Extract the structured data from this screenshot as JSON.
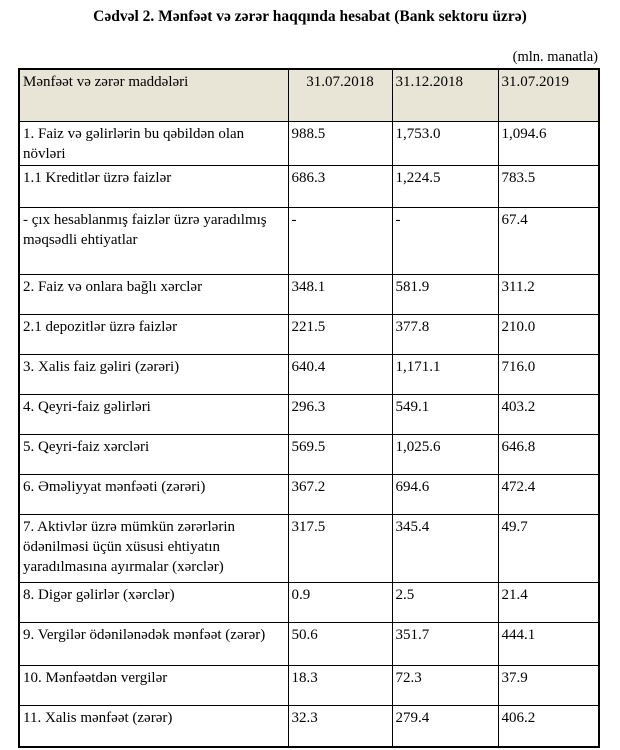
{
  "title": "Cədvəl 2. Mənfəət və zərər haqqında hesabat (Bank sektoru üzrə)",
  "unit_note": "(mln. manatla)",
  "colors": {
    "header_bg": "#e8e5d6",
    "border": "#000000",
    "text": "#000000",
    "page_bg": "#ffffff"
  },
  "table": {
    "columns": [
      "Mənfəət və zərər maddələri",
      "31.07.2018",
      "31.12.2018",
      "31.07.2019"
    ],
    "rows": [
      {
        "label": "1. Faiz və gəlirlərin bu qəbildən olan növləri",
        "values": [
          "988.5",
          "1,753.0",
          "1,094.6"
        ]
      },
      {
        "label": "1.1 Kreditlər üzrə faizlər",
        "values": [
          "686.3",
          "1,224.5",
          "783.5"
        ]
      },
      {
        "label": "- çıx hesablanmış faizlər üzrə yaradılmış məqsədli ehtiyatlar",
        "values": [
          "-",
          "-",
          "67.4"
        ]
      },
      {
        "label": "2. Faiz və onlara bağlı xərclər",
        "values": [
          "348.1",
          "581.9",
          "311.2"
        ]
      },
      {
        "label": "2.1 depozitlər üzrə faizlər",
        "values": [
          "221.5",
          "377.8",
          "210.0"
        ]
      },
      {
        "label": "3. Xalis faiz gəliri (zərəri)",
        "values": [
          "640.4",
          "1,171.1",
          "716.0"
        ]
      },
      {
        "label": "4. Qeyri-faiz gəlirləri",
        "values": [
          "296.3",
          "549.1",
          "403.2"
        ]
      },
      {
        "label": "5. Qeyri-faiz xərcləri",
        "values": [
          "569.5",
          "1,025.6",
          "646.8"
        ]
      },
      {
        "label": "6. Əməliyyat mənfəəti (zərəri)",
        "values": [
          "367.2",
          "694.6",
          "472.4"
        ]
      },
      {
        "label": "7. Aktivlər üzrə mümkün zərərlərin ödənilməsi üçün xüsusi ehtiyatın yaradılmasına ayırmalar (xərclər)",
        "values": [
          "317.5",
          "345.4",
          "49.7"
        ]
      },
      {
        "label": "8. Digər gəlirlər (xərclər)",
        "values": [
          "0.9",
          "2.5",
          "21.4"
        ]
      },
      {
        "label": "9. Vergilər ödənilənədək mənfəət (zərər)",
        "values": [
          "50.6",
          "351.7",
          "444.1"
        ]
      },
      {
        "label": "10. Mənfəətdən vergilər",
        "values": [
          "18.3",
          "72.3",
          "37.9"
        ]
      },
      {
        "label": "11. Xalis mənfəət (zərər)",
        "values": [
          "32.3",
          "279.4",
          "406.2"
        ]
      }
    ]
  }
}
